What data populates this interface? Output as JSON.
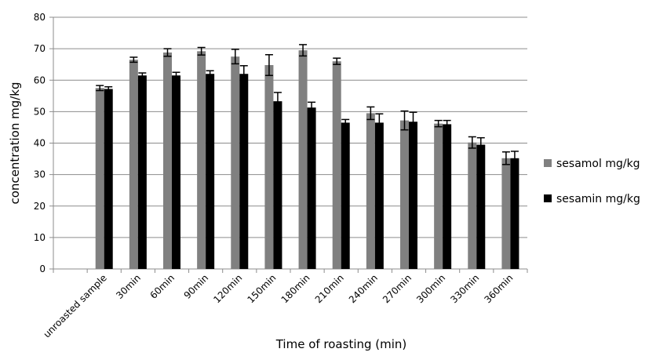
{
  "chart_data": {
    "type": "bar",
    "title": "",
    "xlabel": "Time of roasting (min)",
    "ylabel": "concentration mg/kg",
    "ylim": [
      0,
      80
    ],
    "yticks": [
      0,
      10,
      20,
      30,
      40,
      50,
      60,
      70,
      80
    ],
    "categories": [
      "unroasted sample",
      "30min",
      "60min",
      "90min",
      "120min",
      "150min",
      "180min",
      "210min",
      "240min",
      "270min",
      "300min",
      "330min",
      "360min"
    ],
    "series": [
      {
        "name": "sesamol mg/kg",
        "color": "#808080",
        "values": [
          57.5,
          66.5,
          68.8,
          69.2,
          67.5,
          64.8,
          69.5,
          66.0,
          49.5,
          47.2,
          46.2,
          40.2,
          35.2
        ],
        "errors": [
          0.8,
          0.8,
          1.2,
          1.2,
          2.3,
          3.3,
          1.8,
          1.0,
          2.0,
          3.0,
          1.0,
          1.8,
          2.0
        ]
      },
      {
        "name": "sesamin mg/kg",
        "color": "#000000",
        "values": [
          57.2,
          61.5,
          61.5,
          62.0,
          62.0,
          53.3,
          51.3,
          46.5,
          46.5,
          46.8,
          46.0,
          39.5,
          35.2
        ],
        "errors": [
          0.7,
          0.8,
          1.0,
          1.0,
          2.6,
          2.8,
          1.7,
          1.0,
          2.8,
          3.0,
          1.2,
          2.2,
          2.2
        ]
      }
    ],
    "legend": "right",
    "grid": true
  }
}
